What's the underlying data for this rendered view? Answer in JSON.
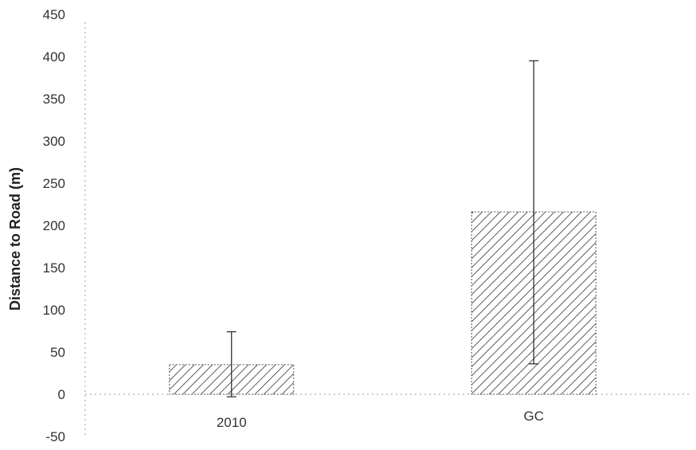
{
  "chart_data": {
    "type": "bar",
    "title": "",
    "xlabel": "",
    "ylabel": "Distance to Road (m)",
    "ylim": [
      -50,
      450
    ],
    "y_ticks": [
      -50,
      0,
      50,
      100,
      150,
      200,
      250,
      300,
      350,
      400,
      450
    ],
    "grid": false,
    "categories": [
      "2010",
      "GC"
    ],
    "values": [
      35,
      216
    ],
    "error_bars": [
      {
        "low": -3,
        "high": 74
      },
      {
        "low": 36,
        "high": 395
      }
    ],
    "bar_pattern": "diagonal-hatch",
    "colors": {
      "bar_hatch": "#333333",
      "bar_outline": "#555555",
      "axis": "#999999",
      "text": "#333333"
    }
  }
}
